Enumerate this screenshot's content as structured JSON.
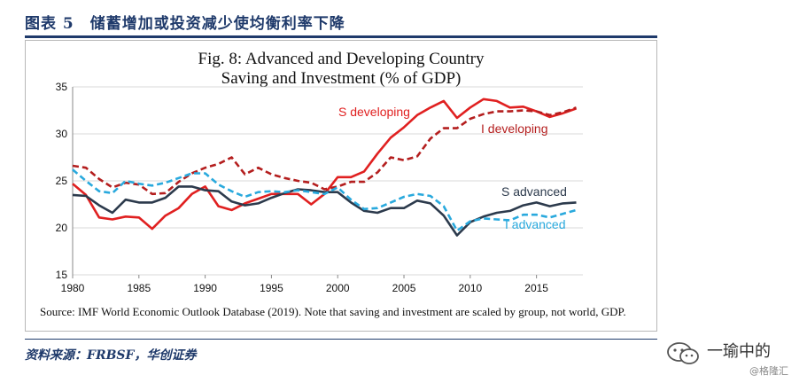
{
  "caption": {
    "title": "图表 5　储蓄增加或投资减少使均衡利率下降"
  },
  "footer": {
    "source_note": "Source: IMF World Economic Outlook Database (2019). Note that saving and investment  are scaled by group, not world, GDP.",
    "data_source": "资料来源：FRBSF，华创证券"
  },
  "watermark": {
    "name": "一瑜中的",
    "sub": "@格隆汇"
  },
  "colors": {
    "developing": "#e02020",
    "developing_i": "#b41e1e",
    "advanced": "#2c3a4c",
    "advanced_i": "#29a9dd",
    "frame_blue": "#1f3a6b"
  },
  "chart_data": {
    "type": "line",
    "title_line1": "Fig. 8: Advanced and Developing Country",
    "title_line2": "Saving and Investment (% of GDP)",
    "xlim": [
      1980,
      2018.5
    ],
    "ylim": [
      15,
      35
    ],
    "xticks": [
      1980,
      1985,
      1990,
      1995,
      2000,
      2005,
      2010,
      2015
    ],
    "yticks": [
      15,
      20,
      25,
      30,
      35
    ],
    "grid": true,
    "x": [
      1980,
      1981,
      1982,
      1983,
      1984,
      1985,
      1986,
      1987,
      1988,
      1989,
      1990,
      1991,
      1992,
      1993,
      1994,
      1995,
      1996,
      1997,
      1998,
      1999,
      2000,
      2001,
      2002,
      2003,
      2004,
      2005,
      2006,
      2007,
      2008,
      2009,
      2010,
      2011,
      2012,
      2013,
      2014,
      2015,
      2016,
      2017,
      2018
    ],
    "series": [
      {
        "name": "S developing",
        "style": "solid",
        "color": "#e02020",
        "values": [
          24.7,
          23.5,
          21.1,
          20.9,
          21.2,
          21.1,
          19.9,
          21.3,
          22.1,
          23.6,
          24.4,
          22.3,
          21.9,
          22.6,
          23.1,
          23.6,
          23.6,
          23.6,
          22.5,
          23.6,
          25.4,
          25.4,
          26.0,
          27.9,
          29.6,
          30.7,
          32.0,
          32.8,
          33.5,
          31.7,
          32.8,
          33.7,
          33.5,
          32.8,
          32.9,
          32.4,
          31.8,
          32.2,
          32.7
        ]
      },
      {
        "name": "I developing",
        "style": "dashed",
        "color": "#b41e1e",
        "values": [
          26.6,
          26.4,
          25.2,
          24.3,
          24.8,
          24.6,
          23.6,
          23.7,
          24.9,
          25.8,
          26.4,
          26.8,
          27.5,
          25.7,
          26.4,
          25.7,
          25.3,
          25.0,
          24.8,
          24.1,
          24.4,
          24.9,
          24.9,
          25.9,
          27.5,
          27.2,
          27.6,
          29.5,
          30.6,
          30.6,
          31.6,
          32.1,
          32.4,
          32.4,
          32.5,
          32.4,
          32.0,
          32.3,
          32.8
        ]
      },
      {
        "name": "S advanced",
        "style": "solid",
        "color": "#2c3a4c",
        "values": [
          23.5,
          23.4,
          22.4,
          21.6,
          23.0,
          22.7,
          22.7,
          23.2,
          24.4,
          24.4,
          24.0,
          23.9,
          22.8,
          22.4,
          22.6,
          23.2,
          23.7,
          24.1,
          24.0,
          23.8,
          23.8,
          22.7,
          21.8,
          21.6,
          22.1,
          22.1,
          22.9,
          22.6,
          21.3,
          19.2,
          20.6,
          21.2,
          21.6,
          21.8,
          22.4,
          22.7,
          22.3,
          22.6,
          22.7
        ]
      },
      {
        "name": "I advanced",
        "style": "dashed",
        "color": "#29a9dd",
        "values": [
          26.2,
          25.0,
          23.9,
          23.7,
          25.0,
          24.7,
          24.5,
          24.8,
          25.3,
          25.8,
          25.8,
          24.6,
          23.9,
          23.3,
          23.8,
          23.9,
          23.8,
          24.0,
          23.8,
          23.6,
          24.3,
          23.0,
          22.0,
          22.1,
          22.7,
          23.3,
          23.6,
          23.4,
          22.3,
          19.7,
          20.7,
          21.0,
          20.9,
          20.8,
          21.4,
          21.4,
          21.1,
          21.5,
          21.9
        ]
      }
    ],
    "labels": [
      {
        "text": "S developing",
        "series": 0
      },
      {
        "text": "I developing",
        "series": 1
      },
      {
        "text": "S advanced",
        "series": 2
      },
      {
        "text": "I advanced",
        "series": 3
      }
    ]
  }
}
